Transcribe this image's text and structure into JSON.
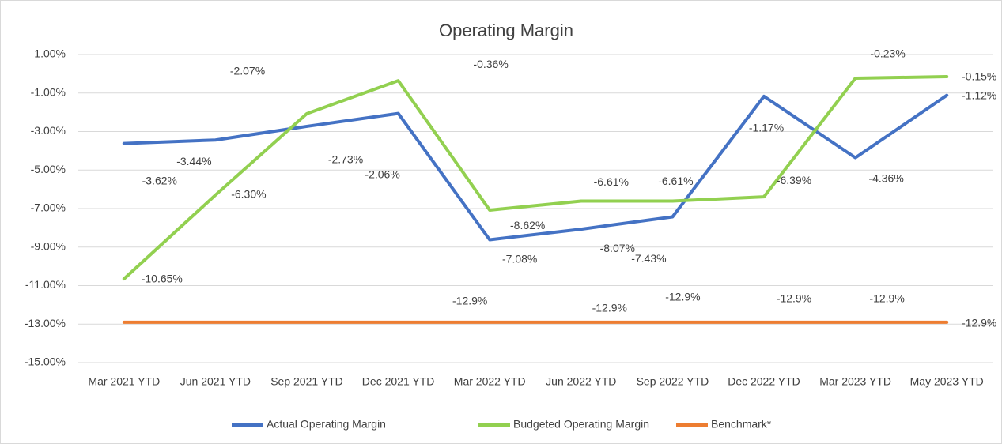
{
  "chart_data": {
    "type": "line",
    "title": "Operating Margin",
    "categories": [
      "Mar 2021 YTD",
      "Jun 2021 YTD",
      "Sep 2021 YTD",
      "Dec 2021 YTD",
      "Mar 2022 YTD",
      "Jun 2022 YTD",
      "Sep 2022 YTD",
      "Dec 2022 YTD",
      "Mar 2023 YTD",
      "May 2023 YTD"
    ],
    "series": [
      {
        "name": "Actual Operating Margin",
        "color": "#4472c4",
        "values": [
          -3.62,
          -3.44,
          -2.73,
          -2.06,
          -8.62,
          -8.07,
          -7.43,
          -1.17,
          -4.36,
          -1.12
        ],
        "value_labels": [
          "-3.62%",
          "-3.44%",
          "-2.73%",
          "-2.06%",
          "-8.62%",
          "-8.07%",
          "-7.43%",
          "-1.17%",
          "-4.36%",
          "-1.12%"
        ]
      },
      {
        "name": "Budgeted Operating Margin",
        "color": "#92d050",
        "values": [
          -10.65,
          -6.3,
          -2.07,
          -0.36,
          -7.08,
          -6.61,
          -6.61,
          -6.39,
          -0.23,
          -0.15
        ],
        "value_labels": [
          "-10.65%",
          "-6.30%",
          "-2.07%",
          "-0.36%",
          "-7.08%",
          "-6.61%",
          "-6.61%",
          "-6.39%",
          "-0.23%",
          "-0.15%"
        ]
      },
      {
        "name": "Benchmark*",
        "color": "#ed7d31",
        "values": [
          -12.9,
          -12.9,
          -12.9,
          -12.9,
          -12.9,
          -12.9,
          -12.9,
          -12.9,
          -12.9,
          -12.9
        ],
        "value_labels": [
          null,
          null,
          null,
          null,
          "-12.9%",
          "-12.9%",
          "-12.9%",
          "-12.9%",
          "-12.9%",
          "-12.9%"
        ]
      }
    ],
    "ylim": [
      -15,
      1
    ],
    "yticks": [
      {
        "value": 1,
        "label": "1.00%"
      },
      {
        "value": -1,
        "label": "-1.00%"
      },
      {
        "value": -3,
        "label": "-3.00%"
      },
      {
        "value": -5,
        "label": "-5.00%"
      },
      {
        "value": -7,
        "label": "-7.00%"
      },
      {
        "value": -9,
        "label": "-9.00%"
      },
      {
        "value": -11,
        "label": "-11.00%"
      },
      {
        "value": -13,
        "label": "-13.00%"
      },
      {
        "value": -15,
        "label": "-15.00%"
      }
    ],
    "grid": true,
    "legend": "bottom"
  }
}
